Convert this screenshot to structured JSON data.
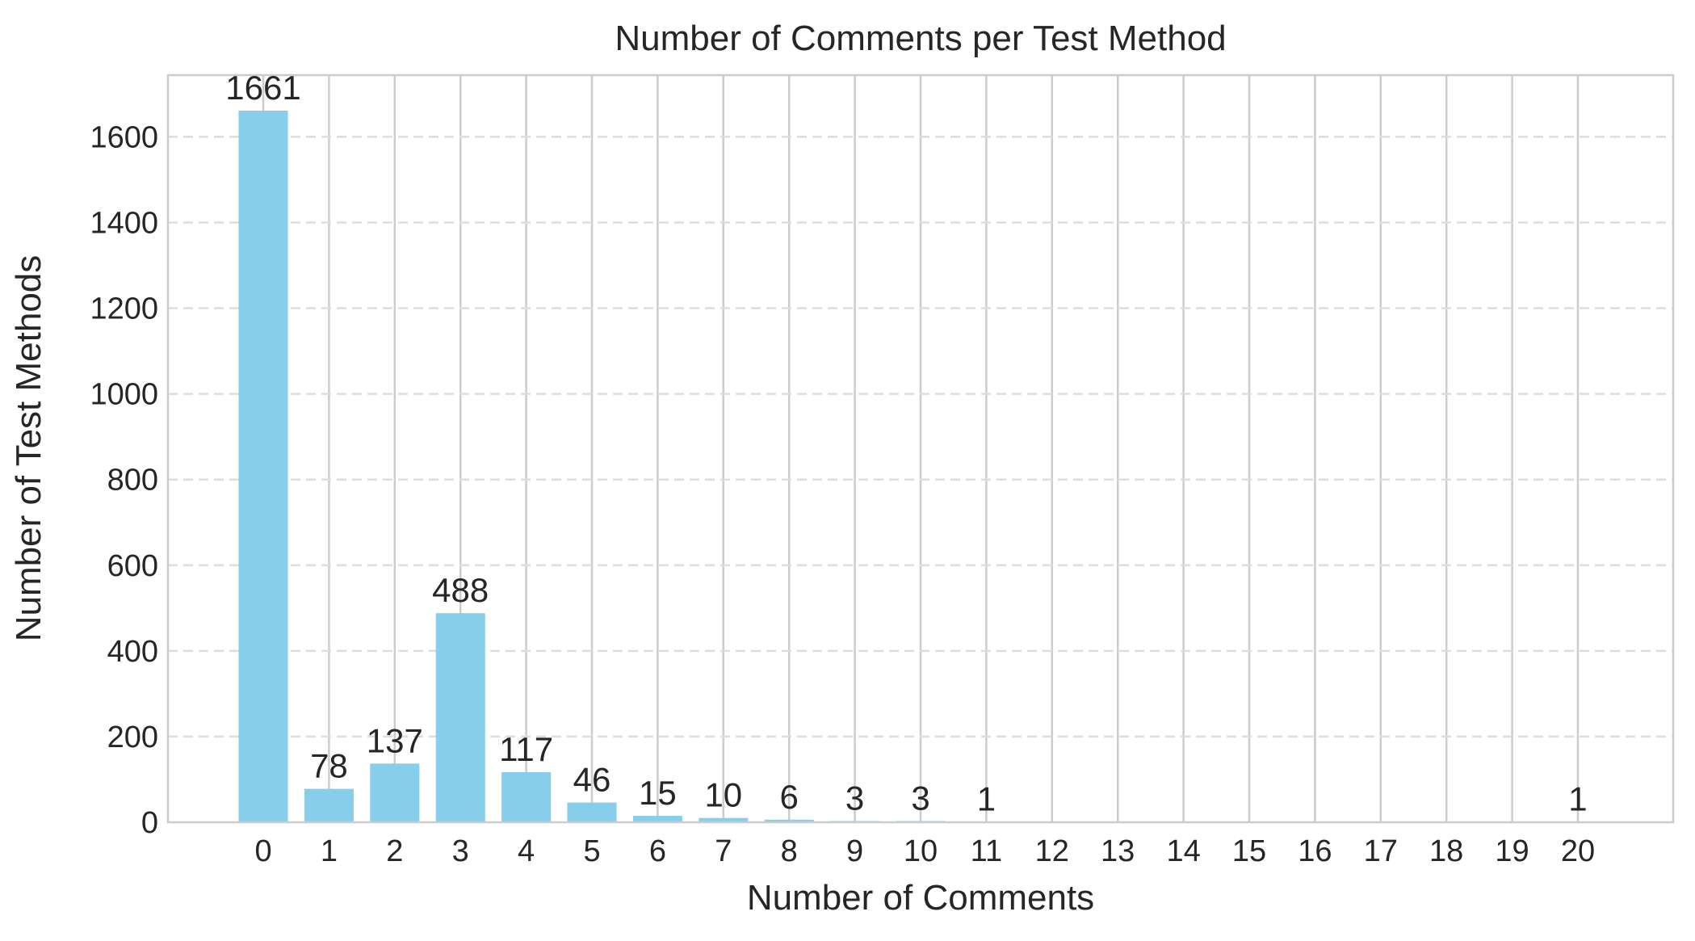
{
  "chart_data": {
    "type": "bar",
    "title": "Number of Comments per Test Method",
    "xlabel": "Number of Comments",
    "ylabel": "Number of Test Methods",
    "categories": [
      0,
      1,
      2,
      3,
      4,
      5,
      6,
      7,
      8,
      9,
      10,
      11,
      12,
      13,
      14,
      15,
      16,
      17,
      18,
      19,
      20
    ],
    "values": [
      1661,
      78,
      137,
      488,
      117,
      46,
      15,
      10,
      6,
      3,
      3,
      1,
      0,
      0,
      0,
      0,
      0,
      0,
      0,
      0,
      1
    ],
    "labels": [
      "1661",
      "78",
      "137",
      "488",
      "117",
      "46",
      "15",
      "10",
      "6",
      "3",
      "3",
      "1",
      "",
      "",
      "",
      "",
      "",
      "",
      "",
      "",
      "1"
    ],
    "yticks": [
      0,
      200,
      400,
      600,
      800,
      1000,
      1200,
      1400,
      1600
    ],
    "xlim": [
      -1.45,
      21.45
    ],
    "ylim": [
      0,
      1744
    ],
    "bar_color": "#87CEEB",
    "grid": "x solid, y dashed",
    "legend": "none"
  }
}
